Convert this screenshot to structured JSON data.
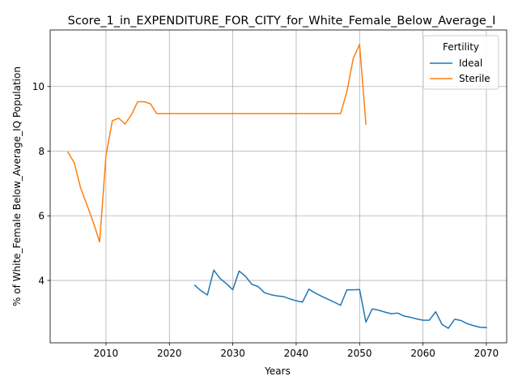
{
  "chart_data": {
    "type": "line",
    "title": "Score_1_in_EXPENDITURE_FOR_CITY_for_White_Female_Below_Average_I",
    "xlabel": "Years",
    "ylabel": "% of White_Female Below_Average_IQ Population",
    "xlim": [
      2001.2,
      2073.2
    ],
    "ylim": [
      2.07,
      11.75
    ],
    "xticks": [
      2010,
      2020,
      2030,
      2040,
      2050,
      2060,
      2070
    ],
    "yticks": [
      4,
      6,
      8,
      10
    ],
    "grid": true,
    "legend": {
      "title": "Fertility",
      "placement": "top-right"
    },
    "series": [
      {
        "name": "Ideal",
        "color": "#1f77b4",
        "x": [
          2024,
          2025,
          2026,
          2027,
          2028,
          2029,
          2030,
          2031,
          2032,
          2033,
          2034,
          2035,
          2036,
          2037,
          2038,
          2039,
          2040,
          2041,
          2042,
          2043,
          2044,
          2045,
          2046,
          2047,
          2048,
          2049,
          2050,
          2051,
          2052,
          2053,
          2054,
          2055,
          2056,
          2057,
          2058,
          2059,
          2060,
          2061,
          2062,
          2063,
          2064,
          2065,
          2066,
          2067,
          2068,
          2069,
          2070
        ],
        "y": [
          3.85,
          3.68,
          3.55,
          4.32,
          4.06,
          3.9,
          3.71,
          4.29,
          4.13,
          3.88,
          3.81,
          3.62,
          3.56,
          3.52,
          3.5,
          3.43,
          3.37,
          3.33,
          3.73,
          3.61,
          3.51,
          3.42,
          3.33,
          3.23,
          3.71,
          3.71,
          3.72,
          2.71,
          3.12,
          3.08,
          3.02,
          2.97,
          2.99,
          2.9,
          2.86,
          2.81,
          2.77,
          2.77,
          3.03,
          2.64,
          2.52,
          2.8,
          2.76,
          2.66,
          2.6,
          2.55,
          2.54
        ]
      },
      {
        "name": "Sterile",
        "color": "#ff7f0e",
        "x": [
          2004,
          2005,
          2006,
          2007,
          2008,
          2009,
          2010,
          2011,
          2012,
          2013,
          2014,
          2015,
          2016,
          2017,
          2018,
          2019,
          2020,
          2021,
          2022,
          2023,
          2024,
          2025,
          2026,
          2027,
          2028,
          2029,
          2030,
          2031,
          2032,
          2033,
          2034,
          2035,
          2036,
          2037,
          2038,
          2039,
          2040,
          2041,
          2042,
          2043,
          2044,
          2045,
          2046,
          2047,
          2048,
          2049,
          2050,
          2051
        ],
        "y": [
          7.97,
          7.64,
          6.86,
          6.34,
          5.8,
          5.19,
          7.86,
          8.94,
          9.02,
          8.84,
          9.12,
          9.53,
          9.53,
          9.47,
          9.16,
          9.16,
          9.16,
          9.16,
          9.16,
          9.16,
          9.16,
          9.16,
          9.16,
          9.16,
          9.16,
          9.16,
          9.16,
          9.16,
          9.16,
          9.16,
          9.16,
          9.16,
          9.16,
          9.16,
          9.16,
          9.16,
          9.16,
          9.16,
          9.16,
          9.16,
          9.16,
          9.16,
          9.16,
          9.16,
          9.84,
          10.87,
          11.3,
          8.84
        ]
      }
    ]
  }
}
